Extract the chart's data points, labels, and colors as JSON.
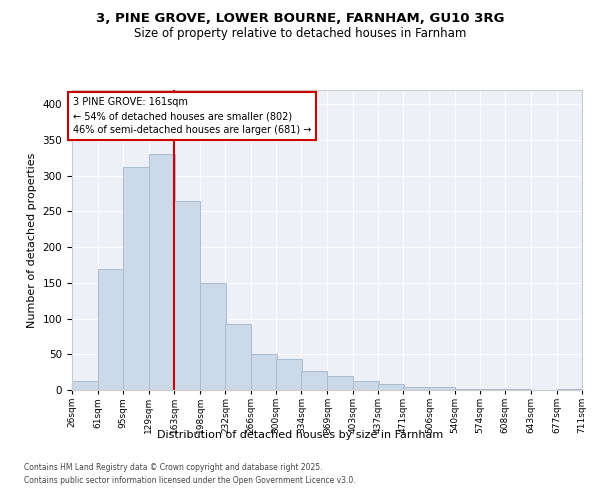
{
  "title": "3, PINE GROVE, LOWER BOURNE, FARNHAM, GU10 3RG",
  "subtitle": "Size of property relative to detached houses in Farnham",
  "xlabel": "Distribution of detached houses by size in Farnham",
  "ylabel": "Number of detached properties",
  "bar_color": "#ccd9e8",
  "bar_edge_color": "#aabcce",
  "line_color": "#cc0000",
  "bg_color": "#edf1f7",
  "annotation_box_color": "#ffffff",
  "annotation_box_edge": "#cc0000",
  "footer1": "Contains HM Land Registry data © Crown copyright and database right 2025.",
  "footer2": "Contains public sector information licensed under the Open Government Licence v3.0.",
  "bin_edges": [
    26,
    61,
    95,
    129,
    163,
    198,
    232,
    266,
    300,
    334,
    369,
    403,
    437,
    471,
    506,
    540,
    574,
    608,
    643,
    677,
    711
  ],
  "bin_labels": [
    "26sqm",
    "61sqm",
    "95sqm",
    "129sqm",
    "163sqm",
    "198sqm",
    "232sqm",
    "266sqm",
    "300sqm",
    "334sqm",
    "369sqm",
    "403sqm",
    "437sqm",
    "471sqm",
    "506sqm",
    "540sqm",
    "574sqm",
    "608sqm",
    "643sqm",
    "677sqm",
    "711sqm"
  ],
  "values": [
    12,
    170,
    312,
    330,
    265,
    150,
    92,
    50,
    44,
    27,
    20,
    12,
    9,
    4,
    4,
    2,
    1,
    1,
    0,
    1
  ],
  "property_line_x": 163,
  "ylim": [
    0,
    420
  ],
  "yticks": [
    0,
    50,
    100,
    150,
    200,
    250,
    300,
    350,
    400
  ],
  "ann_line1": "3 PINE GROVE: 161sqm",
  "ann_line2": "← 54% of detached houses are smaller (802)",
  "ann_line3": "46% of semi-detached houses are larger (681) →"
}
